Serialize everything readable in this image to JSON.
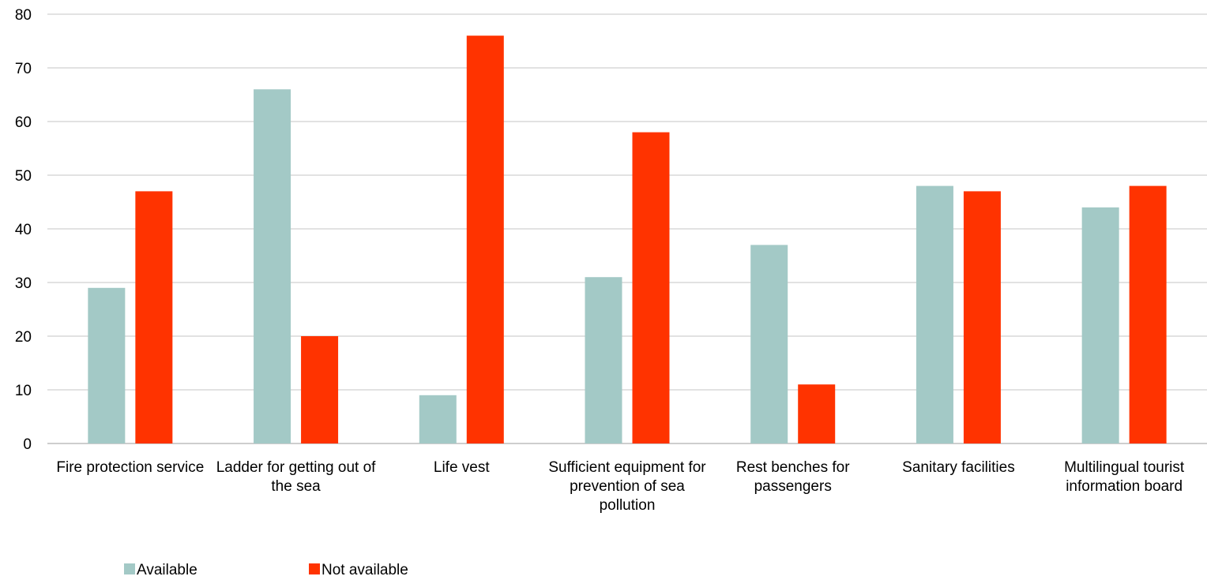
{
  "chart_data": {
    "type": "bar",
    "categories": [
      [
        "Fire protection service"
      ],
      [
        "Ladder for getting out of",
        "the sea"
      ],
      [
        "Life vest"
      ],
      [
        "Sufficient equipment for",
        "prevention of sea",
        "pollution"
      ],
      [
        "Rest benches for",
        "passengers"
      ],
      [
        "Sanitary facilities"
      ],
      [
        "Multilingual tourist",
        "information board"
      ]
    ],
    "series": [
      {
        "name": "Available",
        "color": "#a3c9c6",
        "values": [
          29,
          66,
          9,
          31,
          37,
          48,
          44
        ]
      },
      {
        "name": "Not available",
        "color": "#ff3300",
        "values": [
          47,
          20,
          76,
          58,
          11,
          47,
          48
        ]
      }
    ],
    "ylim": [
      0,
      80
    ],
    "yticks": [
      0,
      10,
      20,
      30,
      40,
      50,
      60,
      70,
      80
    ],
    "grid": true,
    "legend_position": "bottom-left"
  }
}
